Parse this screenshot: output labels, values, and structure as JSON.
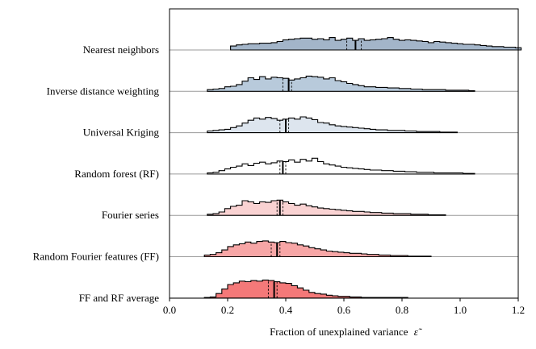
{
  "chart_data": {
    "type": "ridgeline-histogram",
    "title": "",
    "xlabel": "Fraction of unexplained variance",
    "xlabel_symbol": "ε̃",
    "ylabel": "",
    "xlim": [
      0.0,
      1.2
    ],
    "xticks": [
      "0.0",
      "0.2",
      "0.4",
      "0.6",
      "0.8",
      "1.0",
      "1.2"
    ],
    "tick_values": [
      0.0,
      0.2,
      0.4,
      0.6,
      0.8,
      1.0,
      1.2
    ],
    "bin_width": 0.02,
    "series": [
      {
        "name": "Nearest neighbors",
        "color": "#a3b5c9",
        "x_start": 0.21,
        "heights": [
          0.35,
          0.45,
          0.5,
          0.55,
          0.55,
          0.6,
          0.6,
          0.65,
          0.75,
          0.9,
          0.95,
          1.0,
          1.05,
          1.05,
          0.95,
          1.0,
          0.9,
          1.1,
          0.85,
          0.95,
          1.05,
          0.85,
          1.0,
          0.85,
          0.9,
          0.95,
          1.0,
          1.1,
          0.95,
          0.85,
          0.9,
          0.85,
          0.8,
          0.75,
          0.65,
          0.75,
          0.7,
          0.65,
          0.6,
          0.55,
          0.5,
          0.5,
          0.45,
          0.4,
          0.35,
          0.3,
          0.3,
          0.25,
          0.25,
          0.2
        ],
        "median": 0.64,
        "ci_low": 0.61,
        "ci_high": 0.66
      },
      {
        "name": "Inverse distance weighting",
        "color": "#b8cadb",
        "x_start": 0.13,
        "heights": [
          0.15,
          0.2,
          0.25,
          0.4,
          0.45,
          0.6,
          0.9,
          1.2,
          1.05,
          1.3,
          1.1,
          1.25,
          1.2,
          1.15,
          1.0,
          1.1,
          1.2,
          1.35,
          1.3,
          1.25,
          1.1,
          1.2,
          0.95,
          0.85,
          0.7,
          0.6,
          0.5,
          0.4,
          0.4,
          0.35,
          0.35,
          0.3,
          0.3,
          0.25,
          0.25,
          0.2,
          0.2,
          0.15,
          0.15,
          0.15,
          0.15,
          0.1,
          0.1,
          0.1,
          0.1,
          0.05
        ],
        "median": 0.41,
        "ci_low": 0.39,
        "ci_high": 0.42
      },
      {
        "name": "Universal Kriging",
        "color": "#dde5ee",
        "x_start": 0.13,
        "heights": [
          0.15,
          0.2,
          0.25,
          0.3,
          0.45,
          0.6,
          0.85,
          1.1,
          1.3,
          1.2,
          1.35,
          1.25,
          1.1,
          1.2,
          1.3,
          1.2,
          1.4,
          1.3,
          1.15,
          0.9,
          0.85,
          0.7,
          0.6,
          0.55,
          0.5,
          0.45,
          0.4,
          0.35,
          0.3,
          0.25,
          0.25,
          0.2,
          0.2,
          0.2,
          0.15,
          0.15,
          0.1,
          0.1,
          0.1,
          0.1,
          0.05,
          0.05,
          0.05
        ],
        "median": 0.4,
        "ci_low": 0.38,
        "ci_high": 0.41
      },
      {
        "name": "Random forest (RF)",
        "color": "#ffffff",
        "x_start": 0.13,
        "heights": [
          0.1,
          0.15,
          0.3,
          0.45,
          0.6,
          0.7,
          0.9,
          0.75,
          0.95,
          1.05,
          0.9,
          1.0,
          1.15,
          1.1,
          1.25,
          1.05,
          1.3,
          1.15,
          1.4,
          1.1,
          0.9,
          0.8,
          0.7,
          0.6,
          0.55,
          0.5,
          0.45,
          0.4,
          0.35,
          0.35,
          0.3,
          0.3,
          0.25,
          0.25,
          0.2,
          0.2,
          0.15,
          0.15,
          0.15,
          0.1,
          0.1,
          0.1,
          0.1,
          0.1,
          0.05,
          0.05
        ],
        "median": 0.39,
        "ci_low": 0.38,
        "ci_high": 0.4
      },
      {
        "name": "Fourier series",
        "color": "#f9d2d2",
        "x_start": 0.13,
        "heights": [
          0.1,
          0.15,
          0.3,
          0.6,
          0.8,
          0.9,
          1.3,
          1.2,
          1.05,
          1.2,
          1.15,
          1.3,
          1.35,
          1.2,
          1.05,
          0.9,
          1.0,
          0.85,
          0.75,
          0.65,
          0.6,
          0.55,
          0.5,
          0.45,
          0.4,
          0.35,
          0.35,
          0.3,
          0.25,
          0.25,
          0.2,
          0.2,
          0.15,
          0.15,
          0.15,
          0.1,
          0.1,
          0.1,
          0.05,
          0.05,
          0.05
        ],
        "median": 0.38,
        "ci_low": 0.37,
        "ci_high": 0.39
      },
      {
        "name": "Random Fourier features (FF)",
        "color": "#f7a6a6",
        "x_start": 0.12,
        "heights": [
          0.15,
          0.2,
          0.35,
          0.6,
          0.9,
          1.05,
          1.15,
          1.3,
          1.2,
          1.35,
          1.4,
          1.3,
          1.25,
          1.35,
          1.25,
          1.2,
          1.05,
          0.95,
          0.8,
          0.7,
          0.6,
          0.5,
          0.45,
          0.4,
          0.35,
          0.3,
          0.3,
          0.25,
          0.2,
          0.2,
          0.15,
          0.15,
          0.1,
          0.1,
          0.1,
          0.05,
          0.05,
          0.05,
          0.05
        ],
        "median": 0.37,
        "ci_low": 0.35,
        "ci_high": 0.38
      },
      {
        "name": "FF and RF average",
        "color": "#f47979",
        "x_start": 0.12,
        "heights": [
          0.05,
          0.1,
          0.4,
          0.8,
          1.2,
          1.35,
          1.5,
          1.45,
          1.55,
          1.5,
          1.6,
          1.55,
          1.45,
          1.35,
          1.3,
          1.1,
          0.9,
          0.7,
          0.5,
          0.4,
          0.35,
          0.25,
          0.2,
          0.15,
          0.15,
          0.1,
          0.1,
          0.05,
          0.05,
          0.05,
          0.05,
          0.05,
          0.05,
          0.05,
          0.05
        ],
        "median": 0.36,
        "ci_low": 0.34,
        "ci_high": 0.37
      }
    ]
  }
}
